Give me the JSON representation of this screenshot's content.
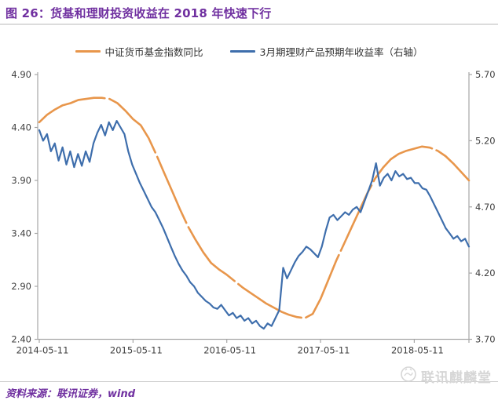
{
  "header": {
    "title": "图 26：货基和理财投资收益在 2018 年快速下行"
  },
  "legend": [
    {
      "label": "中证货币基金指数同比",
      "color": "#E8964B"
    },
    {
      "label": "3月期理财产品预期年收益率（右轴）",
      "color": "#3E6EAC"
    }
  ],
  "footer": {
    "source": "资料来源：联讯证券，wind",
    "watermark": "联讯麒麟堂"
  },
  "colors": {
    "title_purple": "#7030A0",
    "axis_line": "#a6a6a6",
    "tick_text": "#3f3f3f",
    "watermark_gray": "#d6d6d6"
  },
  "chart_data": {
    "type": "line",
    "title": "货基和理财投资收益在 2018 年快速下行",
    "xlabel": "",
    "ylabel_left": "",
    "ylabel_right": "",
    "grid": false,
    "legend_position": "top-center",
    "x_tick_labels": [
      "2014-05-11",
      "2015-05-11",
      "2016-05-11",
      "2017-05-11",
      "2018-05-11"
    ],
    "left_axis": {
      "min": 2.4,
      "max": 4.9,
      "tick_labels": [
        "4.90",
        "4.40",
        "3.90",
        "3.40",
        "2.90",
        "2.40"
      ]
    },
    "right_axis": {
      "min": 3.7,
      "max": 5.7,
      "tick_labels": [
        "5.70",
        "5.20",
        "4.70",
        "4.20",
        "3.70"
      ]
    },
    "series": [
      {
        "name": "中证货币基金指数同比",
        "axis": "left",
        "color": "#E8964B",
        "style": "long-dash",
        "stroke_width": 2.6,
        "x_start": "2014-05",
        "x_end": "2018-12",
        "points_per_month": 1,
        "values": [
          4.45,
          4.52,
          4.57,
          4.61,
          4.63,
          4.66,
          4.67,
          4.68,
          4.68,
          4.67,
          4.63,
          4.56,
          4.48,
          4.42,
          4.3,
          4.14,
          3.97,
          3.8,
          3.63,
          3.47,
          3.34,
          3.22,
          3.12,
          3.06,
          3.01,
          2.95,
          2.89,
          2.84,
          2.79,
          2.74,
          2.7,
          2.66,
          2.63,
          2.61,
          2.6,
          2.64,
          2.78,
          2.96,
          3.14,
          3.3,
          3.46,
          3.62,
          3.78,
          3.92,
          4.02,
          4.1,
          4.15,
          4.18,
          4.2,
          4.22,
          4.21,
          4.18,
          4.13,
          4.06,
          3.98,
          3.9
        ]
      },
      {
        "name": "3月期理财产品预期年收益率（右轴）",
        "axis": "right",
        "color": "#3E6EAC",
        "style": "solid",
        "stroke_width": 2.2,
        "x_start": "2014-05",
        "x_end": "2018-12",
        "points_per_month": 2,
        "values": [
          5.28,
          5.2,
          5.25,
          5.12,
          5.18,
          5.05,
          5.15,
          5.02,
          5.12,
          5.0,
          5.1,
          5.01,
          5.12,
          5.04,
          5.18,
          5.26,
          5.32,
          5.24,
          5.34,
          5.28,
          5.35,
          5.3,
          5.25,
          5.12,
          5.02,
          4.95,
          4.88,
          4.82,
          4.76,
          4.7,
          4.66,
          4.6,
          4.54,
          4.47,
          4.4,
          4.33,
          4.27,
          4.22,
          4.18,
          4.13,
          4.1,
          4.05,
          4.02,
          3.99,
          3.97,
          3.94,
          3.93,
          3.96,
          3.92,
          3.88,
          3.9,
          3.86,
          3.88,
          3.84,
          3.86,
          3.82,
          3.84,
          3.8,
          3.78,
          3.82,
          3.8,
          3.86,
          3.92,
          4.24,
          4.16,
          4.22,
          4.28,
          4.33,
          4.36,
          4.4,
          4.38,
          4.35,
          4.32,
          4.4,
          4.52,
          4.62,
          4.64,
          4.6,
          4.63,
          4.66,
          4.64,
          4.68,
          4.7,
          4.66,
          4.74,
          4.82,
          4.9,
          5.03,
          4.86,
          4.92,
          4.95,
          4.9,
          4.97,
          4.93,
          4.95,
          4.91,
          4.92,
          4.88,
          4.88,
          4.84,
          4.83,
          4.78,
          4.72,
          4.66,
          4.6,
          4.54,
          4.5,
          4.46,
          4.48,
          4.44,
          4.46,
          4.4
        ]
      }
    ]
  }
}
